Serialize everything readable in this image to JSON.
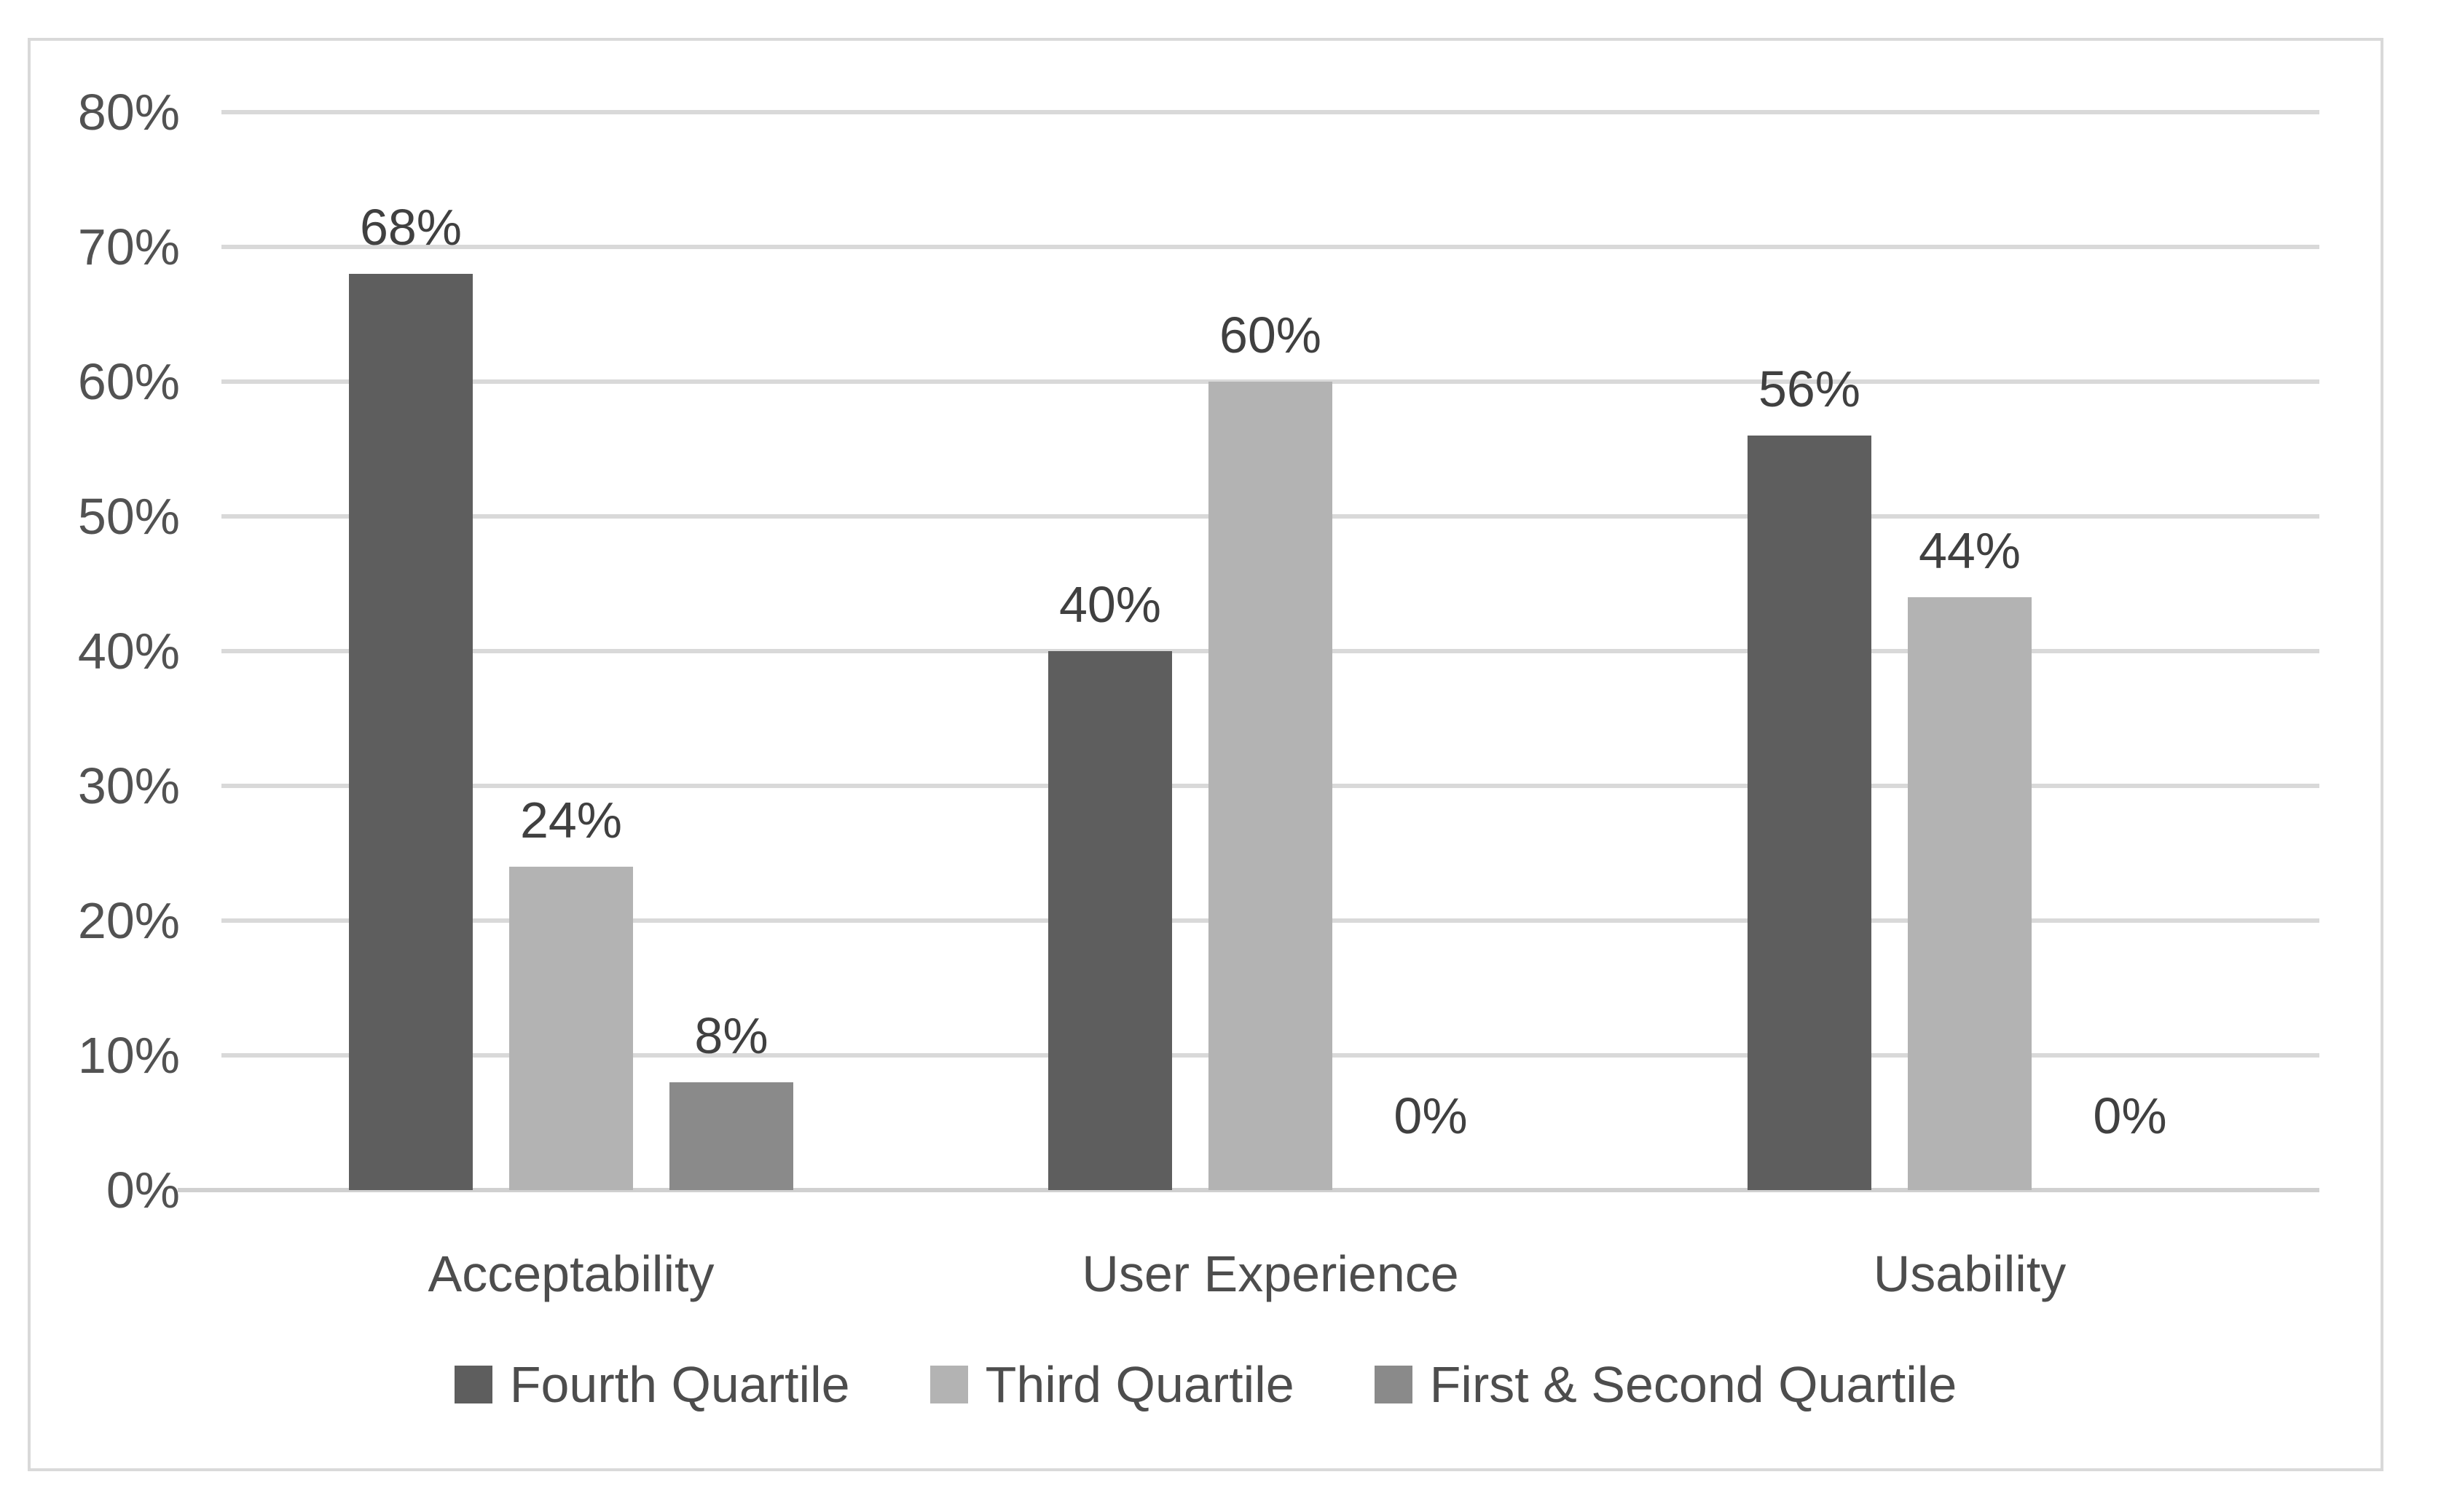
{
  "chart_data": {
    "type": "bar",
    "title": "",
    "xlabel": "",
    "ylabel": "",
    "categories": [
      "Acceptability",
      "User Experience",
      "Usability"
    ],
    "series": [
      {
        "name": "Fourth Quartile",
        "color": "#5e5e5e",
        "values": [
          68,
          40,
          56
        ]
      },
      {
        "name": "Third Quartile",
        "color": "#b3b3b3",
        "values": [
          24,
          60,
          44
        ]
      },
      {
        "name": "First & Second Quartile",
        "color": "#8a8a8a",
        "values": [
          8,
          0,
          0
        ]
      }
    ],
    "data_labels": [
      [
        "68%",
        "40%",
        "56%"
      ],
      [
        "24%",
        "60%",
        "44%"
      ],
      [
        "8%",
        "0%",
        "0%"
      ]
    ],
    "y_axis": {
      "min": 0,
      "max": 80,
      "step": 10,
      "ticks": [
        "0%",
        "10%",
        "20%",
        "30%",
        "40%",
        "50%",
        "60%",
        "70%",
        "80%"
      ]
    },
    "grid": true,
    "legend_position": "bottom"
  },
  "colors": {
    "background": "#ffffff",
    "frame_border": "#d9d9d9",
    "gridline": "#d9d9d9",
    "axis_line": "#d0d0d0",
    "tick_text": "#525252",
    "category_text": "#4d4d4d",
    "data_label_text": "#404040",
    "legend_text": "#4d4d4d"
  }
}
